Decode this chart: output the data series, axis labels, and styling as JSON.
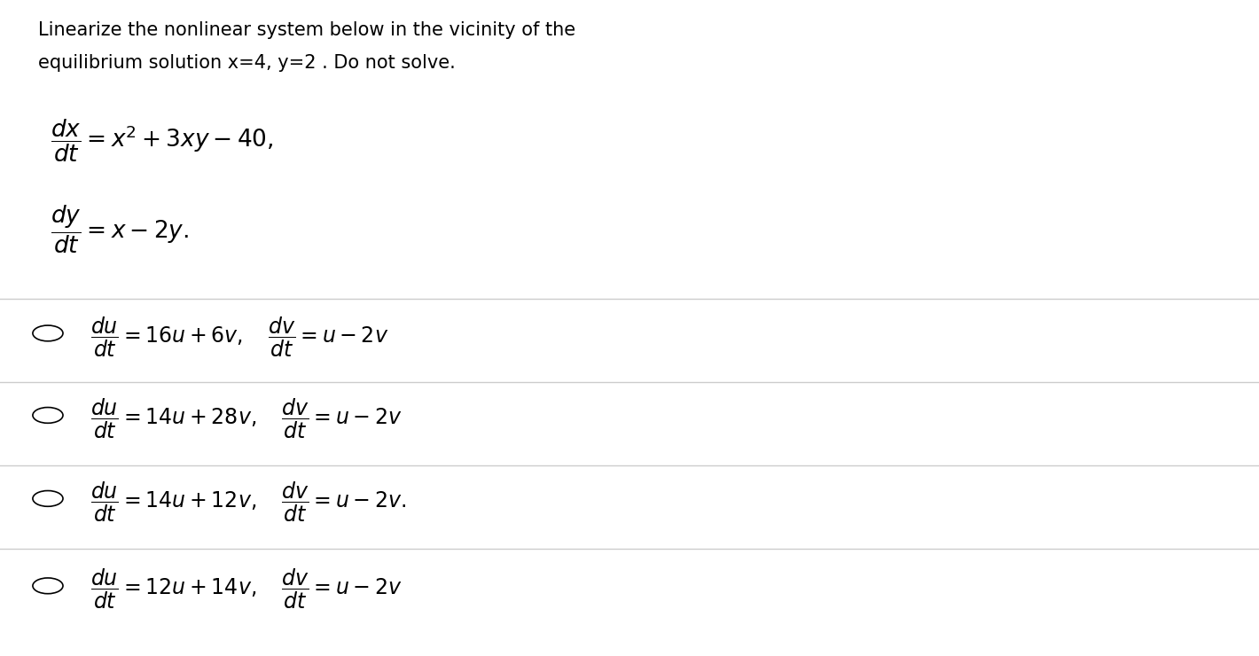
{
  "background_color": "#ffffff",
  "text_color": "#000000",
  "title_line1": "Linearize the nonlinear system below in the vicinity of the",
  "title_line2": "equilibrium solution x=4, y=2 . Do not solve.",
  "separator_color": "#cccccc",
  "circle_color": "#000000",
  "title_fontsize": 15,
  "eq_fontsize": 19,
  "option_fontsize": 17
}
